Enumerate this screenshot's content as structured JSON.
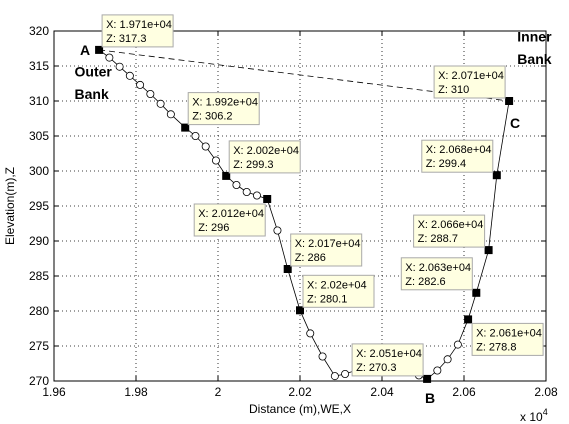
{
  "chart_data": {
    "type": "line",
    "xlabel": "Distance (m),WE,X",
    "ylabel": "Elevation(m),Z",
    "x_multiplier_label": "x 10",
    "x_multiplier_exp": "4",
    "xlim": [
      1.96,
      2.08
    ],
    "ylim": [
      270,
      320
    ],
    "x_ticks": [
      "1.96",
      "1.98",
      "2",
      "2.02",
      "2.04",
      "2.06",
      "2.08"
    ],
    "y_ticks": [
      "270",
      "275",
      "280",
      "285",
      "290",
      "295",
      "300",
      "305",
      "310",
      "315",
      "320"
    ],
    "grid": true,
    "profile_line": {
      "x": [
        1.971,
        1.9735,
        1.976,
        1.9785,
        1.981,
        1.9835,
        1.986,
        1.9885,
        1.992,
        1.9945,
        1.997,
        1.9995,
        2.002,
        2.0045,
        2.007,
        2.0095,
        2.012,
        2.0145,
        2.017,
        2.02,
        2.0225,
        2.0255,
        2.0285,
        2.031,
        2.035,
        2.049,
        2.051,
        2.0535,
        2.056,
        2.0585,
        2.061,
        2.063,
        2.066,
        2.068,
        2.071
      ],
      "z": [
        317.3,
        316.2,
        314.9,
        313.6,
        312.3,
        311.0,
        309.6,
        308.1,
        306.2,
        305.0,
        303.5,
        301.5,
        299.3,
        298.0,
        297.0,
        296.5,
        296.0,
        291.5,
        286.0,
        280.1,
        276.8,
        273.5,
        270.7,
        271.0,
        271.8,
        270.8,
        270.3,
        271.5,
        273.1,
        275.2,
        278.8,
        282.6,
        288.7,
        299.4,
        310.0
      ]
    },
    "open_circle_markers": {
      "x": [
        1.9735,
        1.976,
        1.9785,
        1.981,
        1.9835,
        1.986,
        1.9885,
        1.9945,
        1.997,
        1.9995,
        2.0045,
        2.007,
        2.0095,
        2.0145,
        2.0225,
        2.0255,
        2.0285,
        2.031,
        2.049,
        2.0535,
        2.056,
        2.0585
      ],
      "z": [
        316.2,
        314.9,
        313.6,
        312.3,
        311.0,
        309.6,
        308.1,
        305.0,
        303.5,
        301.5,
        298.0,
        297.0,
        296.5,
        291.5,
        276.8,
        273.5,
        270.7,
        271.0,
        270.8,
        271.5,
        273.1,
        275.2
      ]
    },
    "dashed_line": {
      "x": [
        1.971,
        2.071
      ],
      "z": [
        317.3,
        310.0
      ]
    },
    "datatips": [
      {
        "x": 1.971,
        "z": 317.3,
        "x_text": "X: 1.971e+04",
        "z_text": "Z: 317.3",
        "place": "above-right"
      },
      {
        "x": 1.992,
        "z": 306.2,
        "x_text": "X: 1.992e+04",
        "z_text": "Z: 306.2",
        "place": "above-right"
      },
      {
        "x": 2.002,
        "z": 299.3,
        "x_text": "X: 2.002e+04",
        "z_text": "Z: 299.3",
        "place": "above-right"
      },
      {
        "x": 2.012,
        "z": 296.0,
        "x_text": "X: 2.012e+04",
        "z_text": "Z: 296",
        "place": "below-left"
      },
      {
        "x": 2.017,
        "z": 286.0,
        "x_text": "X: 2.017e+04",
        "z_text": "Z: 286",
        "place": "above-right"
      },
      {
        "x": 2.02,
        "z": 280.1,
        "x_text": "X: 2.02e+04",
        "z_text": "Z: 280.1",
        "place": "above-right"
      },
      {
        "x": 2.051,
        "z": 270.3,
        "x_text": "X: 2.051e+04",
        "z_text": "Z: 270.3",
        "place": "above-left"
      },
      {
        "x": 2.061,
        "z": 278.8,
        "x_text": "X: 2.061e+04",
        "z_text": "Z: 278.8",
        "place": "below-right"
      },
      {
        "x": 2.063,
        "z": 282.6,
        "x_text": "X: 2.063e+04",
        "z_text": "Z: 282.6",
        "place": "above-left"
      },
      {
        "x": 2.066,
        "z": 288.7,
        "x_text": "X: 2.066e+04",
        "z_text": "Z: 288.7",
        "place": "above-left"
      },
      {
        "x": 2.068,
        "z": 299.4,
        "x_text": "X: 2.068e+04",
        "z_text": "Z: 299.4",
        "place": "above-left"
      },
      {
        "x": 2.071,
        "z": 310.0,
        "x_text": "X: 2.071e+04",
        "z_text": "Z: 310",
        "place": "above-left"
      }
    ],
    "point_labels": [
      {
        "text": "A",
        "x": 1.971,
        "z": 317.3,
        "place": "left"
      },
      {
        "text": "B",
        "x": 2.051,
        "z": 270.3,
        "place": "below"
      },
      {
        "text": "C",
        "x": 2.071,
        "z": 310.0,
        "place": "below"
      }
    ],
    "bank_labels": [
      {
        "text": "Outer",
        "x": 1.965,
        "z": 313.5
      },
      {
        "text": "Bank",
        "x": 1.965,
        "z": 310.3
      },
      {
        "text": "Inner",
        "x": 2.073,
        "z": 318.5
      },
      {
        "text": "Bank",
        "x": 2.073,
        "z": 315.3
      }
    ],
    "colors": {
      "line": "#000000",
      "grid": "#000000",
      "tip_bg": "#ffffe1",
      "tip_border": "#a9a9a9"
    }
  }
}
